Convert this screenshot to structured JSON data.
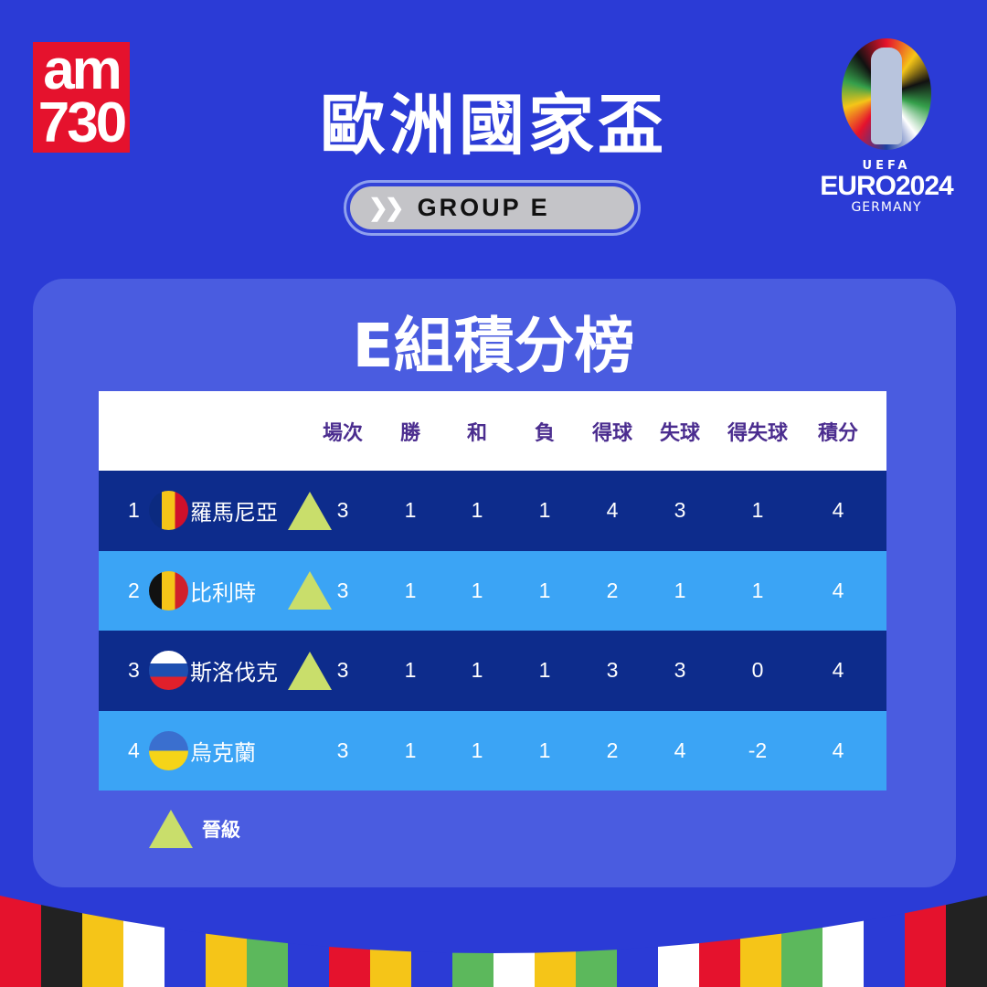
{
  "brand": {
    "logo_text_top": "am",
    "logo_text_bottom": "730"
  },
  "header": {
    "title": "歐洲國家盃",
    "group_label": "GROUP E"
  },
  "euro_logo": {
    "uefa": "UEFA",
    "name": "EURO2024",
    "country": "GERMANY"
  },
  "standings": {
    "title": "E組積分榜",
    "columns": [
      "場次",
      "勝",
      "和",
      "負",
      "得球",
      "失球",
      "得失球",
      "積分"
    ],
    "rows": [
      {
        "rank": "1",
        "team": "羅馬尼亞",
        "flag": "romania-flag",
        "qualified": true,
        "stats": [
          "3",
          "1",
          "1",
          "1",
          "4",
          "3",
          "1",
          "4"
        ]
      },
      {
        "rank": "2",
        "team": "比利時",
        "flag": "belgium-flag",
        "qualified": true,
        "stats": [
          "3",
          "1",
          "1",
          "1",
          "2",
          "1",
          "1",
          "4"
        ]
      },
      {
        "rank": "3",
        "team": "斯洛伐克",
        "flag": "slovakia-flag",
        "qualified": true,
        "stats": [
          "3",
          "1",
          "1",
          "1",
          "3",
          "3",
          "0",
          "4"
        ]
      },
      {
        "rank": "4",
        "team": "烏克蘭",
        "flag": "ukraine-flag",
        "qualified": false,
        "stats": [
          "3",
          "1",
          "1",
          "1",
          "2",
          "4",
          "-2",
          "4"
        ]
      }
    ],
    "legend": "晉級"
  },
  "colors": {
    "background": "#2b3bd6",
    "panel": "#4a5ce0",
    "row_dark": "#0d2c8c",
    "row_light": "#3ba4f5",
    "qualified_marker": "#c9de6b",
    "header_text": "#4b2d8f"
  }
}
